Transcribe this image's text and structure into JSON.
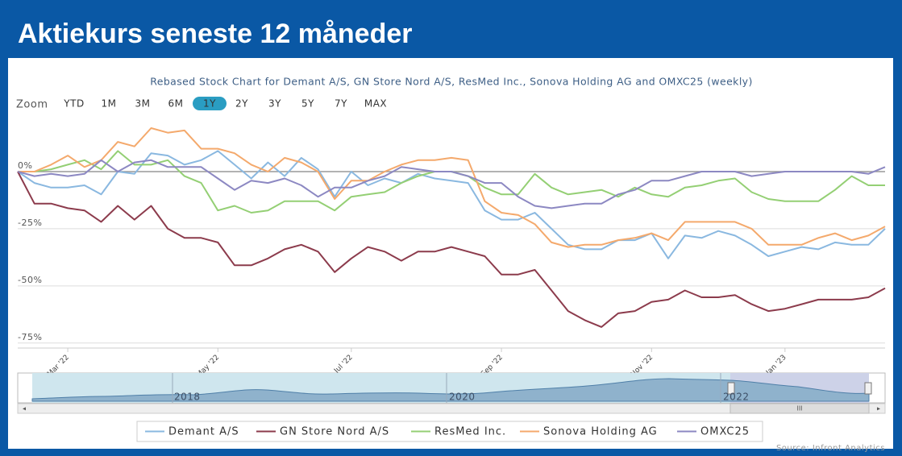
{
  "header": {
    "title": "Aktiekurs seneste 12 måneder"
  },
  "chart_data": {
    "type": "line",
    "title": "Rebased Stock Chart for Demant A/S, GN Store Nord A/S, ResMed Inc., Sonova Holding AG and OMXC25 (weekly)",
    "zoom": {
      "label": "Zoom",
      "buttons": [
        "YTD",
        "1M",
        "3M",
        "6M",
        "1Y",
        "2Y",
        "3Y",
        "5Y",
        "7Y",
        "MAX"
      ],
      "selected": 4
    },
    "categories": [
      null,
      null,
      null,
      "Mar '22",
      null,
      null,
      null,
      null,
      null,
      null,
      null,
      null,
      "May '22",
      null,
      null,
      null,
      null,
      null,
      null,
      null,
      "Jul '22",
      null,
      null,
      null,
      null,
      null,
      null,
      null,
      null,
      "Sep '22",
      null,
      null,
      null,
      null,
      null,
      null,
      null,
      null,
      "Nov '22",
      null,
      null,
      null,
      null,
      null,
      null,
      null,
      "Jan '23",
      null,
      null,
      null,
      null,
      null,
      null
    ],
    "series": [
      {
        "name": "Demant A/S",
        "color": "#8ab8e0",
        "values": [
          0,
          -5,
          -7,
          -7,
          -6,
          -10,
          0,
          -1,
          8,
          7,
          3,
          5,
          9,
          3,
          -3,
          4,
          -2,
          6,
          1,
          -11,
          0,
          -6,
          -3,
          -5,
          -1,
          -3,
          -4,
          -5,
          -17,
          -21,
          -21,
          -18,
          -25,
          -32,
          -34,
          -34,
          -30,
          -30,
          -27,
          -38,
          -28,
          -29,
          -26,
          -28,
          -32,
          -37,
          -35,
          -33,
          -34,
          -31,
          -32,
          -32,
          -25
        ]
      },
      {
        "name": "GN Store Nord A/S",
        "color": "#8c3b4c",
        "values": [
          0,
          -14,
          -14,
          -16,
          -17,
          -22,
          -15,
          -21,
          -15,
          -25,
          -29,
          -29,
          -31,
          -41,
          -41,
          -38,
          -34,
          -32,
          -35,
          -44,
          -38,
          -33,
          -35,
          -39,
          -35,
          -35,
          -33,
          -35,
          -37,
          -45,
          -45,
          -43,
          -52,
          -61,
          -65,
          -68,
          -62,
          -61,
          -57,
          -56,
          -52,
          -55,
          -55,
          -54,
          -58,
          -61,
          -60,
          -58,
          -56,
          -56,
          -56,
          -55,
          -51
        ]
      },
      {
        "name": "ResMed Inc.",
        "color": "#94cf74",
        "values": [
          0,
          0,
          1,
          3,
          5,
          1,
          9,
          3,
          3,
          5,
          -2,
          -5,
          -17,
          -15,
          -18,
          -17,
          -13,
          -13,
          -13,
          -17,
          -11,
          -10,
          -9,
          -5,
          -2,
          0,
          0,
          -2,
          -7,
          -10,
          -10,
          -1,
          -7,
          -10,
          -9,
          -8,
          -11,
          -7,
          -10,
          -11,
          -7,
          -6,
          -4,
          -3,
          -9,
          -12,
          -13,
          -13,
          -13,
          -8,
          -2,
          -6,
          -6
        ]
      },
      {
        "name": "Sonova Holding AG",
        "color": "#f4a96c",
        "values": [
          0,
          0,
          3,
          7,
          2,
          5,
          13,
          11,
          19,
          17,
          18,
          10,
          10,
          8,
          3,
          0,
          6,
          4,
          0,
          -12,
          -4,
          -4,
          0,
          3,
          5,
          5,
          6,
          5,
          -13,
          -18,
          -19,
          -23,
          -31,
          -33,
          -32,
          -32,
          -30,
          -29,
          -27,
          -30,
          -22,
          -22,
          -22,
          -22,
          -25,
          -32,
          -32,
          -32,
          -29,
          -27,
          -30,
          -28,
          -24
        ]
      },
      {
        "name": "OMXC25",
        "color": "#8c88c2",
        "values": [
          0,
          -2,
          -1,
          -2,
          -1,
          5,
          0,
          4,
          5,
          2,
          2,
          2,
          -3,
          -8,
          -4,
          -5,
          -3,
          -6,
          -11,
          -7,
          -7,
          -4,
          -2,
          2,
          1,
          0,
          0,
          -2,
          -5,
          -5,
          -11,
          -15,
          -16,
          -15,
          -14,
          -14,
          -10,
          -8,
          -4,
          -4,
          -2,
          0,
          0,
          0,
          -2,
          -1,
          0,
          0,
          0,
          0,
          0,
          -1,
          2
        ]
      }
    ],
    "ylim": [
      -80,
      25
    ],
    "yticks": [
      {
        "value": -75,
        "label": "-75%"
      },
      {
        "value": -50,
        "label": "-50%"
      },
      {
        "value": -25,
        "label": "-25%"
      },
      {
        "value": 0,
        "label": "0%"
      }
    ],
    "grid": true,
    "legend": "bottom",
    "navigator": {
      "labels": [
        "2018",
        "2020",
        "2022"
      ]
    },
    "source": "Source: Infront Analytics"
  }
}
